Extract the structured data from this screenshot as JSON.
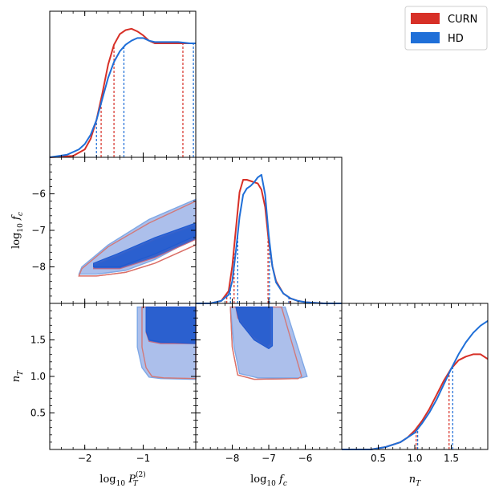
{
  "chart_data": {
    "type": "corner",
    "title": "",
    "series": [
      {
        "name": "CURN",
        "color": "#d73027"
      },
      {
        "name": "HD",
        "color": "#1f6fd8"
      }
    ],
    "parameters": [
      {
        "key": "logP",
        "range": [
          -2.6,
          -0.1
        ],
        "ticks": [
          -2,
          -1
        ],
        "tick_labels": [
          "−2",
          "−1"
        ],
        "label_main": "log",
        "label_sub": "10",
        "label_var": "P",
        "label_var_sub": "T",
        "label_var_sup": "(2)"
      },
      {
        "key": "logfc",
        "range": [
          -9.0,
          -5.0
        ],
        "ticks": [
          -8,
          -7,
          -6
        ],
        "tick_labels": [
          "−8",
          "−7",
          "−6"
        ],
        "label_main": "log",
        "label_sub": "10",
        "label_var": "f",
        "label_var_sub": "c"
      },
      {
        "key": "nT",
        "range": [
          0.0,
          2.0
        ],
        "ticks": [
          0.5,
          1.0,
          1.5
        ],
        "tick_labels": [
          "0.5",
          "1.0",
          "1.5"
        ],
        "label_main": "",
        "label_sub": "",
        "label_var": "n",
        "label_var_sub": "T"
      }
    ],
    "marginals": {
      "logP": {
        "CURN": {
          "x": [
            -2.6,
            -2.2,
            -2.0,
            -1.9,
            -1.8,
            -1.7,
            -1.6,
            -1.5,
            -1.4,
            -1.3,
            -1.2,
            -1.1,
            -1.0,
            -0.9,
            -0.8,
            -0.6,
            -0.4,
            -0.2,
            -0.1
          ],
          "y": [
            0.0,
            0.01,
            0.06,
            0.14,
            0.28,
            0.48,
            0.7,
            0.85,
            0.93,
            0.96,
            0.97,
            0.95,
            0.92,
            0.88,
            0.86,
            0.86,
            0.86,
            0.86,
            0.86
          ]
        },
        "HD": {
          "x": [
            -2.6,
            -2.3,
            -2.1,
            -2.0,
            -1.9,
            -1.8,
            -1.7,
            -1.6,
            -1.5,
            -1.4,
            -1.3,
            -1.2,
            -1.1,
            -1.0,
            -0.9,
            -0.8,
            -0.6,
            -0.4,
            -0.2,
            -0.1
          ],
          "y": [
            0.0,
            0.02,
            0.06,
            0.1,
            0.17,
            0.28,
            0.44,
            0.6,
            0.72,
            0.8,
            0.85,
            0.88,
            0.9,
            0.9,
            0.88,
            0.87,
            0.87,
            0.87,
            0.86,
            0.86
          ]
        },
        "quantiles": {
          "CURN": [
            -1.72,
            -1.5,
            -0.32
          ],
          "HD": [
            -1.8,
            -1.33,
            -0.14
          ]
        }
      },
      "logfc": {
        "CURN": {
          "x": [
            -9.0,
            -8.6,
            -8.3,
            -8.1,
            -8.0,
            -7.9,
            -7.8,
            -7.7,
            -7.6,
            -7.5,
            -7.4,
            -7.3,
            -7.2,
            -7.1,
            -7.0,
            -6.9,
            -6.8,
            -6.6,
            -6.4,
            -6.2,
            -6.0,
            -5.5,
            -5.0
          ],
          "y": [
            0.0,
            0.0,
            0.02,
            0.1,
            0.3,
            0.6,
            0.9,
            1.0,
            1.0,
            0.99,
            0.98,
            0.97,
            0.92,
            0.78,
            0.5,
            0.3,
            0.18,
            0.08,
            0.04,
            0.02,
            0.01,
            0.0,
            0.0
          ]
        },
        "HD": {
          "x": [
            -9.0,
            -8.6,
            -8.3,
            -8.1,
            -8.0,
            -7.9,
            -7.8,
            -7.7,
            -7.6,
            -7.5,
            -7.4,
            -7.3,
            -7.2,
            -7.1,
            -7.0,
            -6.9,
            -6.8,
            -6.6,
            -6.4,
            -6.2,
            -6.0,
            -5.5,
            -5.0
          ],
          "y": [
            0.0,
            0.0,
            0.02,
            0.07,
            0.18,
            0.42,
            0.7,
            0.88,
            0.93,
            0.95,
            0.98,
            1.02,
            1.04,
            0.88,
            0.55,
            0.3,
            0.17,
            0.08,
            0.04,
            0.02,
            0.01,
            0.0,
            0.0
          ]
        },
        "quantiles": {
          "CURN": [
            -8.15,
            -7.95,
            -7.02,
            -6.42
          ],
          "HD": [
            -8.05,
            -7.85,
            -6.98,
            -6.45
          ]
        }
      },
      "nT": {
        "CURN": {
          "x": [
            0.0,
            0.4,
            0.6,
            0.8,
            0.9,
            1.0,
            1.1,
            1.2,
            1.3,
            1.4,
            1.5,
            1.6,
            1.7,
            1.8,
            1.9,
            2.0
          ],
          "y": [
            0.0,
            0.0,
            0.02,
            0.06,
            0.1,
            0.16,
            0.24,
            0.34,
            0.46,
            0.58,
            0.68,
            0.75,
            0.78,
            0.8,
            0.8,
            0.76
          ]
        },
        "HD": {
          "x": [
            0.0,
            0.4,
            0.6,
            0.8,
            0.9,
            1.0,
            1.1,
            1.2,
            1.3,
            1.4,
            1.5,
            1.6,
            1.7,
            1.8,
            1.9,
            2.0
          ],
          "y": [
            0.0,
            0.0,
            0.02,
            0.06,
            0.1,
            0.14,
            0.22,
            0.31,
            0.42,
            0.55,
            0.68,
            0.8,
            0.9,
            0.98,
            1.04,
            1.08
          ]
        },
        "quantiles": {
          "CURN": [
            1.02,
            1.47
          ],
          "HD": [
            1.04,
            1.52
          ]
        }
      }
    },
    "contours": {
      "logfc_vs_logP": {
        "outer_CURN": [
          [
            -2.1,
            -8.25
          ],
          [
            -1.8,
            -8.25
          ],
          [
            -1.3,
            -8.15
          ],
          [
            -0.8,
            -7.9
          ],
          [
            -0.1,
            -7.4
          ],
          [
            -0.1,
            -6.2
          ],
          [
            -0.9,
            -6.8
          ],
          [
            -1.6,
            -7.45
          ],
          [
            -2.05,
            -8.05
          ]
        ],
        "outer_HD": [
          [
            -2.1,
            -8.2
          ],
          [
            -1.8,
            -8.2
          ],
          [
            -1.3,
            -8.1
          ],
          [
            -0.8,
            -7.8
          ],
          [
            -0.1,
            -7.2
          ],
          [
            -0.1,
            -6.15
          ],
          [
            -0.9,
            -6.7
          ],
          [
            -1.6,
            -7.4
          ],
          [
            -2.05,
            -8.0
          ]
        ],
        "inner_CURN": [
          [
            -1.85,
            -8.05
          ],
          [
            -1.4,
            -8.05
          ],
          [
            -0.8,
            -7.75
          ],
          [
            -0.1,
            -7.25
          ],
          [
            -0.1,
            -6.85
          ],
          [
            -0.8,
            -7.25
          ],
          [
            -1.45,
            -7.7
          ],
          [
            -1.85,
            -7.95
          ]
        ],
        "inner_HD": [
          [
            -1.85,
            -8.0
          ],
          [
            -1.4,
            -8.0
          ],
          [
            -0.8,
            -7.65
          ],
          [
            -0.1,
            -7.15
          ],
          [
            -0.1,
            -6.8
          ],
          [
            -0.8,
            -7.2
          ],
          [
            -1.45,
            -7.65
          ],
          [
            -1.85,
            -7.9
          ]
        ]
      },
      "nT_vs_logP": {
        "outer_CURN": [
          [
            -0.1,
            1.95
          ],
          [
            -1.02,
            1.95
          ],
          [
            -1.02,
            1.4
          ],
          [
            -0.95,
            1.12
          ],
          [
            -0.85,
            1.0
          ],
          [
            -0.65,
            0.98
          ],
          [
            -0.1,
            0.97
          ]
        ],
        "outer_HD": [
          [
            -0.1,
            1.95
          ],
          [
            -1.1,
            1.95
          ],
          [
            -1.1,
            1.4
          ],
          [
            -1.02,
            1.12
          ],
          [
            -0.9,
            0.99
          ],
          [
            -0.7,
            0.97
          ],
          [
            -0.1,
            0.96
          ]
        ],
        "inner_CURN": [
          [
            -0.1,
            1.95
          ],
          [
            -0.95,
            1.95
          ],
          [
            -0.95,
            1.6
          ],
          [
            -0.9,
            1.48
          ],
          [
            -0.7,
            1.45
          ],
          [
            -0.1,
            1.45
          ]
        ],
        "inner_HD": [
          [
            -0.1,
            1.95
          ],
          [
            -0.95,
            1.95
          ],
          [
            -0.95,
            1.62
          ],
          [
            -0.9,
            1.5
          ],
          [
            -0.7,
            1.47
          ],
          [
            -0.1,
            1.45
          ]
        ]
      },
      "nT_vs_logfc": {
        "outer_CURN": [
          [
            -8.05,
            1.95
          ],
          [
            -6.65,
            1.95
          ],
          [
            -6.1,
            1.0
          ],
          [
            -6.2,
            0.97
          ],
          [
            -7.4,
            0.96
          ],
          [
            -7.85,
            1.02
          ],
          [
            -8.0,
            1.4
          ]
        ],
        "outer_HD": [
          [
            -8.05,
            1.95
          ],
          [
            -6.55,
            1.95
          ],
          [
            -5.95,
            1.0
          ],
          [
            -6.1,
            0.98
          ],
          [
            -7.3,
            0.98
          ],
          [
            -7.8,
            1.04
          ],
          [
            -7.95,
            1.4
          ]
        ],
        "inner_CURN": [
          [
            -7.9,
            1.95
          ],
          [
            -6.95,
            1.95
          ],
          [
            -6.95,
            1.45
          ],
          [
            -7.05,
            1.4
          ],
          [
            -7.45,
            1.55
          ],
          [
            -7.85,
            1.8
          ]
        ],
        "inner_HD": [
          [
            -7.9,
            1.95
          ],
          [
            -6.9,
            1.95
          ],
          [
            -6.9,
            1.42
          ],
          [
            -7.0,
            1.38
          ],
          [
            -7.4,
            1.5
          ],
          [
            -7.8,
            1.75
          ]
        ]
      }
    },
    "legend": {
      "position": "top-right",
      "entries": [
        "CURN",
        "HD"
      ]
    }
  }
}
